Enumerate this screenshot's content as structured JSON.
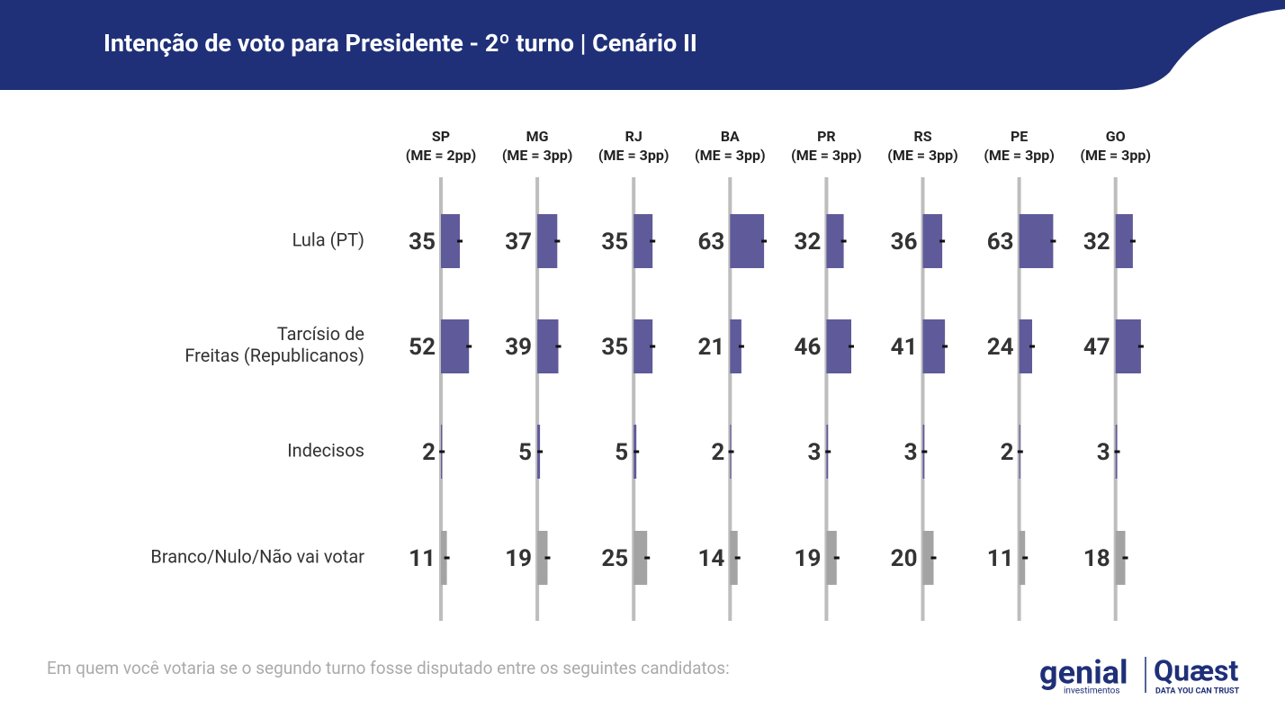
{
  "chart_data": {
    "type": "bar",
    "title": "Intenção de voto para Presidente - 2º turno | Cenário II",
    "footnote": "Em quem você votaria se o segundo turno fosse disputado entre os seguintes candidatos:",
    "categories": [
      "Lula (PT)",
      "Tarcísio de Freitas (Republicanos)",
      "Indecisos",
      "Branco/Nulo/Não vai votar"
    ],
    "colors": [
      "#5f5a9a",
      "#5f5a9a",
      "#5f5a9a",
      "#a3a3a3"
    ],
    "series": [
      {
        "name": "SP",
        "margin": "(ME = 2pp)",
        "values": [
          35,
          52,
          2,
          11
        ]
      },
      {
        "name": "MG",
        "margin": "(ME = 3pp)",
        "values": [
          37,
          39,
          5,
          19
        ]
      },
      {
        "name": "RJ",
        "margin": "(ME = 3pp)",
        "values": [
          35,
          35,
          5,
          25
        ]
      },
      {
        "name": "BA",
        "margin": "(ME = 3pp)",
        "values": [
          63,
          21,
          2,
          14
        ]
      },
      {
        "name": "PR",
        "margin": "(ME = 3pp)",
        "values": [
          32,
          46,
          3,
          19
        ]
      },
      {
        "name": "RS",
        "margin": "(ME = 3pp)",
        "values": [
          36,
          41,
          3,
          20
        ]
      },
      {
        "name": "PE",
        "margin": "(ME = 3pp)",
        "values": [
          63,
          24,
          2,
          11
        ]
      },
      {
        "name": "GO",
        "margin": "(ME = 3pp)",
        "values": [
          32,
          47,
          3,
          18
        ]
      }
    ]
  },
  "logos": {
    "genial": "genial",
    "genial_sub": "investimentos",
    "quaest": "Quæst",
    "quaest_sub": "DATA YOU CAN TRUST"
  }
}
